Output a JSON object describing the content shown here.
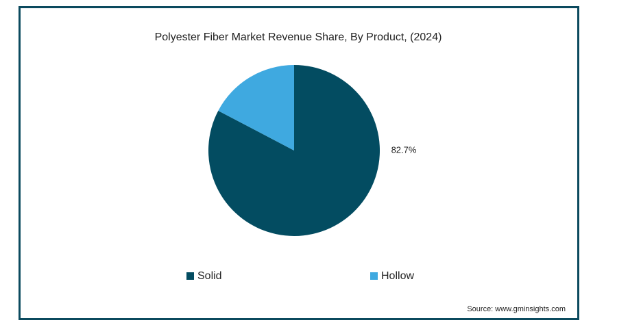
{
  "chart_data": {
    "type": "pie",
    "title": "Polyester Fiber Market Revenue Share, By Product,  (2024)",
    "categories": [
      "Solid",
      "Hollow"
    ],
    "values": [
      82.7,
      17.3
    ],
    "value_labels": [
      "82.7%",
      null
    ],
    "colors": [
      "#034c61",
      "#3fa9e0"
    ],
    "legend": "bottom",
    "source": "Source: www.gminsights.com"
  }
}
